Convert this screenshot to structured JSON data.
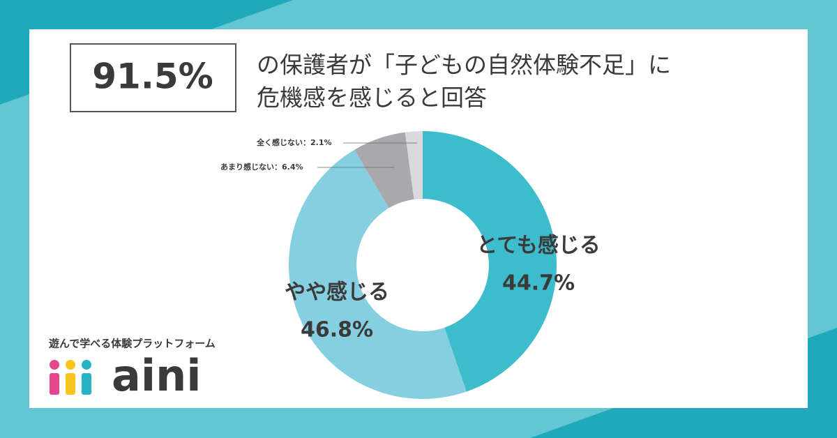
{
  "chart_data": {
    "type": "pie",
    "headline": "91.5%",
    "title": [
      "の保護者が「子どもの自然体験不足」に",
      "危機感を感じると回答"
    ],
    "categories": [
      "とても感じる",
      "やや感じる",
      "あまり感じない",
      "全く感じない"
    ],
    "values": [
      44.7,
      46.8,
      6.4,
      2.1
    ],
    "value_labels": [
      "44.7%",
      "46.8%",
      "：6.4%",
      "：2.1%"
    ],
    "colors": [
      "#3dbccc",
      "#86cfe0",
      "#a9a9ad",
      "#dad9dd"
    ],
    "donut": true
  },
  "brand": {
    "tagline": "遊んで学べる体験プラットフォーム",
    "name": "aini"
  }
}
